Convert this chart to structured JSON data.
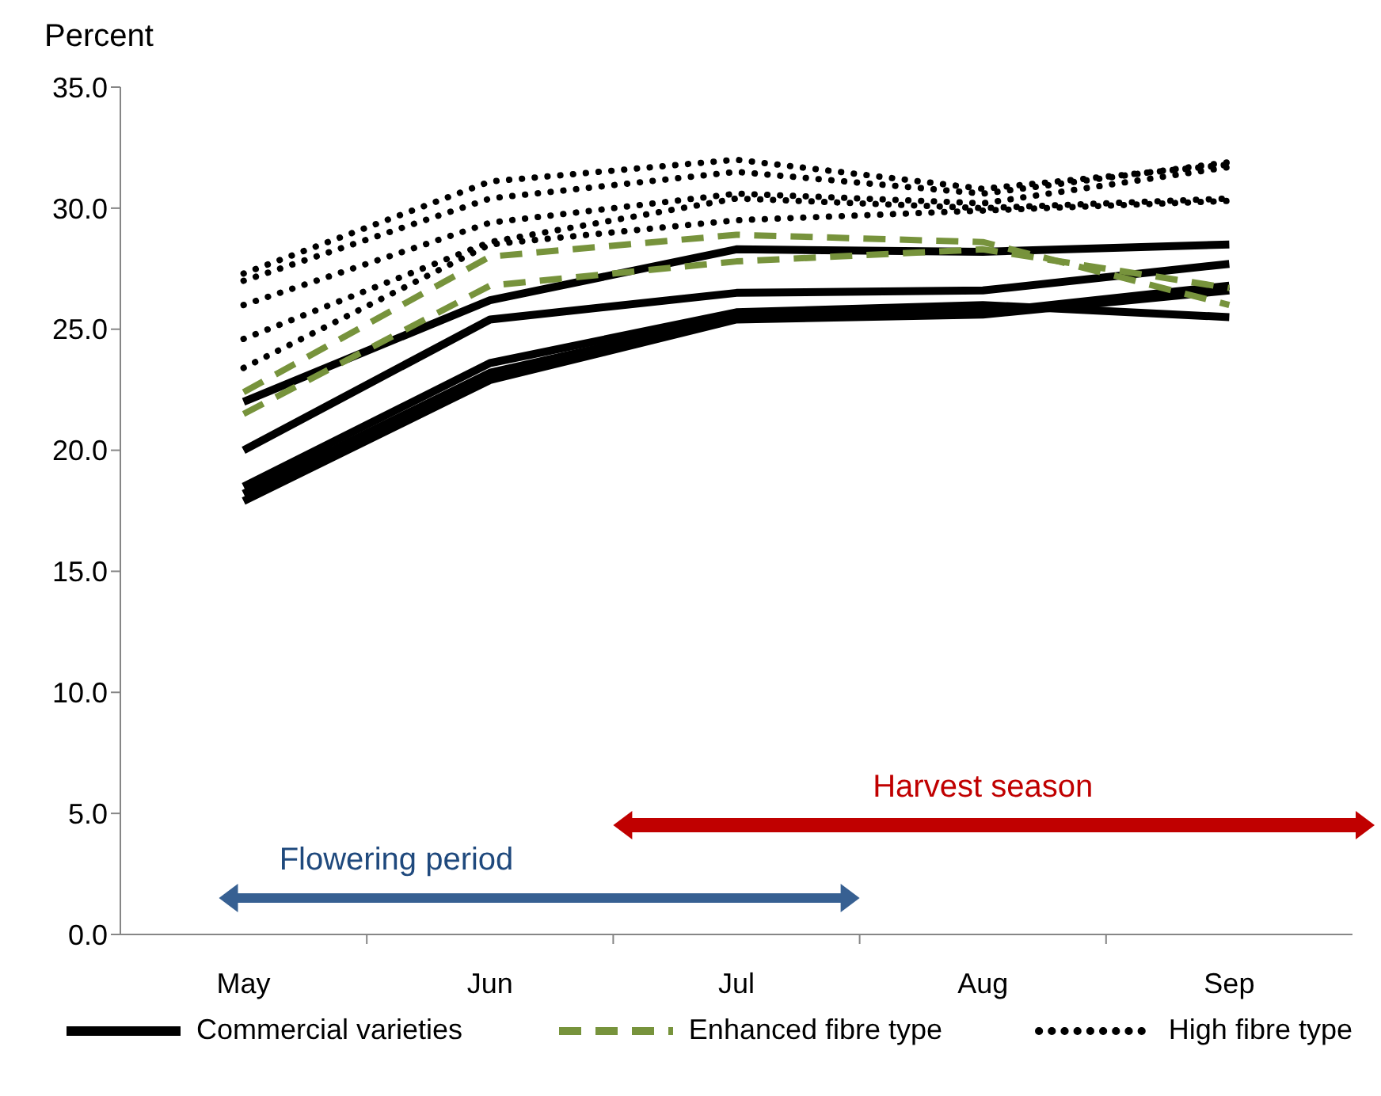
{
  "chart_data": {
    "type": "line",
    "ylabel": "Percent",
    "categories": [
      "May",
      "Jun",
      "Jul",
      "Aug",
      "Sep"
    ],
    "ylim": [
      0,
      35
    ],
    "yticks": [
      {
        "value": 0,
        "label": "0.0"
      },
      {
        "value": 5,
        "label": "5.0"
      },
      {
        "value": 10,
        "label": "10.0"
      },
      {
        "value": 15,
        "label": "15.0"
      },
      {
        "value": 20,
        "label": "20.0"
      },
      {
        "value": 25,
        "label": "25.0"
      },
      {
        "value": 30,
        "label": "30.0"
      },
      {
        "value": 35,
        "label": "35.0"
      }
    ],
    "grid": false,
    "legend": "bottom",
    "marker": "none",
    "annotations": [
      "Flowering period",
      "Harvest season"
    ],
    "series": [
      {
        "name": "Commercial varieties",
        "color": "#000000",
        "line_style": "solid",
        "values": [
          22.0,
          26.2,
          28.3,
          28.2,
          28.5
        ]
      },
      {
        "color": "#000000",
        "line_style": "solid",
        "values": [
          20.0,
          25.4,
          26.5,
          26.6,
          27.7
        ]
      },
      {
        "color": "#000000",
        "line_style": "solid",
        "values": [
          18.5,
          23.6,
          25.7,
          26.0,
          25.5
        ]
      },
      {
        "color": "#000000",
        "line_style": "solid",
        "values": [
          18.2,
          23.2,
          25.5,
          25.7,
          26.8
        ]
      },
      {
        "color": "#000000",
        "line_style": "solid",
        "values": [
          17.9,
          22.9,
          25.4,
          25.6,
          26.6
        ]
      },
      {
        "name": "Enhanced fibre  type",
        "color": "#77933c",
        "line_style": "dashed",
        "values": [
          22.4,
          28.0,
          28.9,
          28.6,
          26.0
        ]
      },
      {
        "color": "#77933c",
        "line_style": "dashed",
        "values": [
          21.5,
          26.8,
          27.8,
          28.3,
          26.7
        ]
      },
      {
        "name": "High fibre type",
        "color": "#000000",
        "line_style": "dotted",
        "values": [
          27.3,
          31.1,
          32.0,
          30.8,
          31.8
        ]
      },
      {
        "color": "#000000",
        "line_style": "dotted",
        "values": [
          27.0,
          30.4,
          31.5,
          30.6,
          31.9
        ]
      },
      {
        "color": "#000000",
        "line_style": "dotted",
        "values": [
          26.0,
          29.4,
          30.6,
          30.2,
          31.7
        ]
      },
      {
        "color": "#000000",
        "line_style": "dotted",
        "values": [
          24.6,
          28.6,
          30.4,
          30.0,
          30.4
        ]
      },
      {
        "color": "#000000",
        "line_style": "dotted",
        "values": [
          23.4,
          28.5,
          29.5,
          29.9,
          30.3
        ]
      }
    ]
  }
}
